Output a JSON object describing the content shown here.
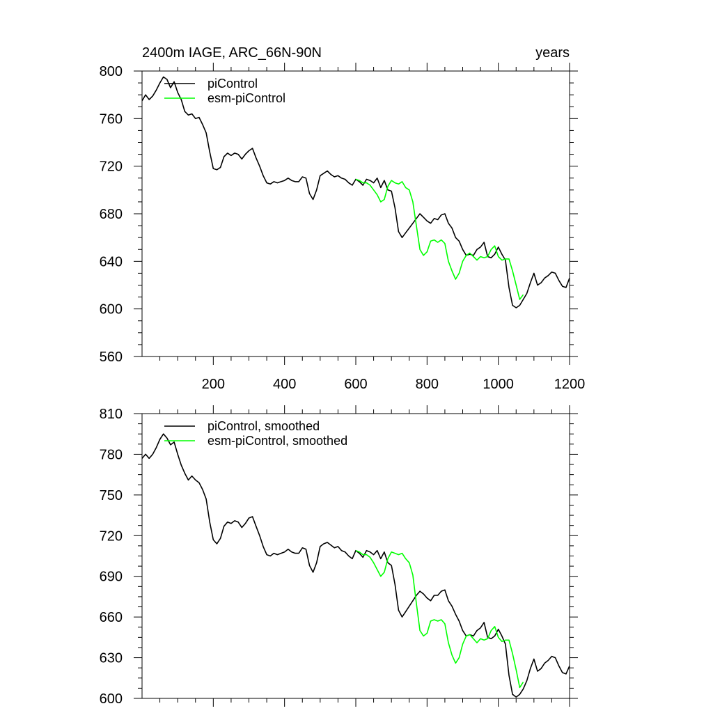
{
  "chart_data": [
    {
      "type": "line",
      "title_left": "2400m IAGE, ARC_66N-90N",
      "title_right": "years",
      "xlim": [
        0,
        1200
      ],
      "ylim": [
        560,
        800
      ],
      "xticks": [
        200,
        400,
        600,
        800,
        1000,
        1200
      ],
      "yticks": [
        560,
        600,
        640,
        680,
        720,
        760,
        800
      ],
      "legend": "top-left",
      "series": [
        {
          "name": "piControl",
          "color": "#000000",
          "x": [
            0,
            10,
            20,
            30,
            40,
            50,
            60,
            70,
            80,
            90,
            100,
            110,
            120,
            130,
            140,
            150,
            160,
            170,
            180,
            190,
            200,
            210,
            220,
            230,
            240,
            250,
            260,
            270,
            280,
            290,
            300,
            310,
            320,
            330,
            340,
            350,
            360,
            370,
            380,
            390,
            400,
            410,
            420,
            430,
            440,
            450,
            460,
            470,
            480,
            490,
            500,
            510,
            520,
            530,
            540,
            550,
            560,
            570,
            580,
            590,
            600,
            610,
            620,
            630,
            640,
            650,
            660,
            670,
            680,
            690,
            700,
            710,
            720,
            730,
            740,
            750,
            760,
            770,
            780,
            790,
            800,
            810,
            820,
            830,
            840,
            850,
            860,
            870,
            880,
            890,
            900,
            910,
            920,
            930,
            940,
            950,
            960,
            970,
            980,
            990,
            1000,
            1010,
            1020,
            1030,
            1040,
            1050,
            1060,
            1070,
            1080,
            1090,
            1100,
            1110,
            1120,
            1130,
            1140,
            1150,
            1160,
            1170,
            1180,
            1190,
            1200
          ],
          "values": [
            775,
            780,
            776,
            779,
            784,
            790,
            795,
            793,
            786,
            791,
            782,
            776,
            766,
            763,
            764,
            760,
            761,
            755,
            748,
            732,
            718,
            717,
            719,
            728,
            731,
            729,
            731,
            730,
            726,
            730,
            733,
            735,
            727,
            720,
            712,
            706,
            705,
            707,
            706,
            707,
            708,
            710,
            708,
            707,
            707,
            711,
            710,
            697,
            692,
            700,
            712,
            714,
            716,
            713,
            711,
            712,
            710,
            709,
            706,
            704,
            709,
            707,
            704,
            709,
            708,
            706,
            710,
            702,
            708,
            700,
            699,
            685,
            665,
            660,
            664,
            668,
            672,
            676,
            680,
            677,
            674,
            672,
            676,
            675,
            679,
            680,
            672,
            668,
            660,
            657,
            650,
            645,
            646,
            645,
            650,
            652,
            656,
            644,
            643,
            646,
            652,
            646,
            641,
            618,
            603,
            601,
            603,
            608,
            613,
            622,
            630,
            620,
            622,
            626,
            628,
            631,
            630,
            624,
            619,
            618,
            626
          ]
        },
        {
          "name": "esm-piControl",
          "color": "#00ff00",
          "x": [
            600,
            610,
            620,
            630,
            640,
            650,
            660,
            670,
            680,
            690,
            700,
            710,
            720,
            730,
            740,
            750,
            760,
            770,
            780,
            790,
            800,
            810,
            820,
            830,
            840,
            850,
            860,
            870,
            880,
            890,
            900,
            910,
            920,
            930,
            940,
            950,
            960,
            970,
            980,
            990,
            1000,
            1010,
            1020,
            1030,
            1040,
            1050,
            1060,
            1070
          ],
          "values": [
            709,
            708,
            706,
            706,
            704,
            700,
            696,
            690,
            692,
            703,
            708,
            706,
            705,
            707,
            702,
            700,
            690,
            670,
            650,
            645,
            648,
            657,
            658,
            656,
            658,
            655,
            640,
            632,
            625,
            630,
            640,
            645,
            647,
            644,
            641,
            644,
            643,
            644,
            650,
            653,
            644,
            641,
            642,
            642,
            632,
            620,
            608,
            612
          ]
        }
      ]
    },
    {
      "type": "line",
      "xlim": [
        0,
        1200
      ],
      "ylim": [
        600,
        810
      ],
      "xticks": [
        200,
        400,
        600,
        800,
        1000,
        1200
      ],
      "yticks": [
        600,
        630,
        660,
        690,
        720,
        750,
        780,
        810
      ],
      "legend": "top-left",
      "series": [
        {
          "name": "piControl, smoothed",
          "color": "#000000",
          "x": [
            0,
            10,
            20,
            30,
            40,
            50,
            60,
            70,
            80,
            90,
            100,
            110,
            120,
            130,
            140,
            150,
            160,
            170,
            180,
            190,
            200,
            210,
            220,
            230,
            240,
            250,
            260,
            270,
            280,
            290,
            300,
            310,
            320,
            330,
            340,
            350,
            360,
            370,
            380,
            390,
            400,
            410,
            420,
            430,
            440,
            450,
            460,
            470,
            480,
            490,
            500,
            510,
            520,
            530,
            540,
            550,
            560,
            570,
            580,
            590,
            600,
            610,
            620,
            630,
            640,
            650,
            660,
            670,
            680,
            690,
            700,
            710,
            720,
            730,
            740,
            750,
            760,
            770,
            780,
            790,
            800,
            810,
            820,
            830,
            840,
            850,
            860,
            870,
            880,
            890,
            900,
            910,
            920,
            930,
            940,
            950,
            960,
            970,
            980,
            990,
            1000,
            1010,
            1020,
            1030,
            1040,
            1050,
            1060,
            1070,
            1080,
            1090,
            1100,
            1110,
            1120,
            1130,
            1140,
            1150,
            1160,
            1170,
            1180,
            1190,
            1200
          ],
          "values": [
            777,
            780,
            777,
            780,
            785,
            791,
            795,
            792,
            787,
            789,
            780,
            772,
            766,
            761,
            764,
            761,
            759,
            754,
            747,
            730,
            717,
            714,
            718,
            727,
            730,
            729,
            731,
            730,
            726,
            729,
            733,
            734,
            727,
            720,
            712,
            706,
            705,
            707,
            706,
            707,
            708,
            710,
            708,
            707,
            707,
            711,
            710,
            698,
            693,
            700,
            712,
            714,
            715,
            713,
            711,
            712,
            709,
            708,
            705,
            703,
            709,
            707,
            704,
            709,
            708,
            706,
            709,
            703,
            708,
            700,
            698,
            684,
            665,
            660,
            664,
            668,
            672,
            676,
            679,
            677,
            674,
            672,
            676,
            676,
            679,
            680,
            672,
            668,
            662,
            657,
            650,
            646,
            647,
            646,
            650,
            652,
            656,
            645,
            644,
            646,
            651,
            646,
            640,
            617,
            603,
            601,
            603,
            607,
            613,
            622,
            629,
            620,
            622,
            626,
            628,
            631,
            630,
            624,
            619,
            618,
            624
          ]
        },
        {
          "name": "esm-piControl, smoothed",
          "color": "#00ff00",
          "x": [
            600,
            610,
            620,
            630,
            640,
            650,
            660,
            670,
            680,
            690,
            700,
            710,
            720,
            730,
            740,
            750,
            760,
            770,
            780,
            790,
            800,
            810,
            820,
            830,
            840,
            850,
            860,
            870,
            880,
            890,
            900,
            910,
            920,
            930,
            940,
            950,
            960,
            970,
            980,
            990,
            1000,
            1010,
            1020,
            1030,
            1040,
            1050,
            1060,
            1070
          ],
          "values": [
            709,
            708,
            706,
            706,
            704,
            700,
            695,
            690,
            693,
            703,
            708,
            707,
            706,
            707,
            703,
            700,
            691,
            670,
            650,
            646,
            648,
            657,
            658,
            657,
            658,
            655,
            641,
            632,
            626,
            630,
            640,
            646,
            647,
            644,
            641,
            644,
            643,
            644,
            650,
            653,
            645,
            642,
            643,
            643,
            633,
            621,
            608,
            612
          ]
        }
      ]
    }
  ]
}
